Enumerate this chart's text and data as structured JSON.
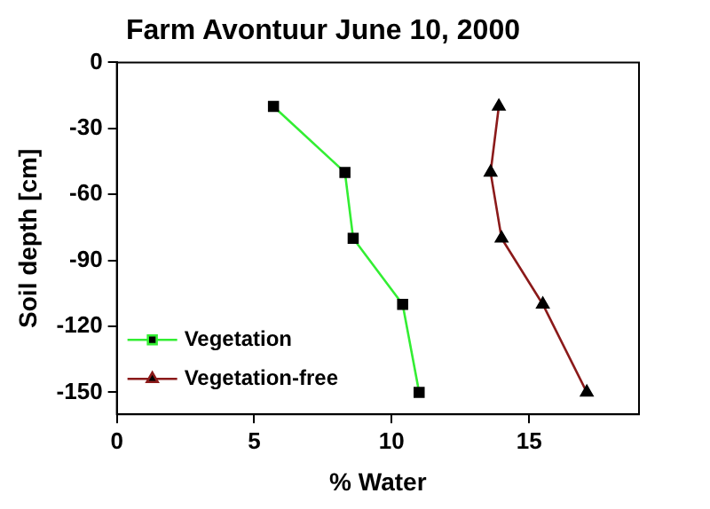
{
  "chart_data": {
    "type": "line",
    "title": "Farm Avontuur June 10, 2000",
    "xlabel": "% Water",
    "ylabel": "Soil depth [cm]",
    "xlim": [
      0,
      19
    ],
    "xticks": [
      0,
      5,
      10,
      15
    ],
    "ylim": [
      -160,
      0
    ],
    "yticks": [
      -150,
      -120,
      -90,
      -60,
      -30,
      0
    ],
    "grid": false,
    "legend": "bottom left",
    "series": [
      {
        "name": "Vegetation",
        "color": "#33ee33",
        "marker": "square",
        "x": [
          5.7,
          8.3,
          8.6,
          10.4,
          11.0
        ],
        "values": [
          -20,
          -50,
          -80,
          -110,
          -150
        ]
      },
      {
        "name": "Vegetation-free",
        "color": "#8b1a1a",
        "marker": "triangle",
        "x": [
          13.9,
          13.6,
          14.0,
          15.5,
          17.1
        ],
        "values": [
          -20,
          -50,
          -80,
          -110,
          -150
        ]
      }
    ]
  }
}
